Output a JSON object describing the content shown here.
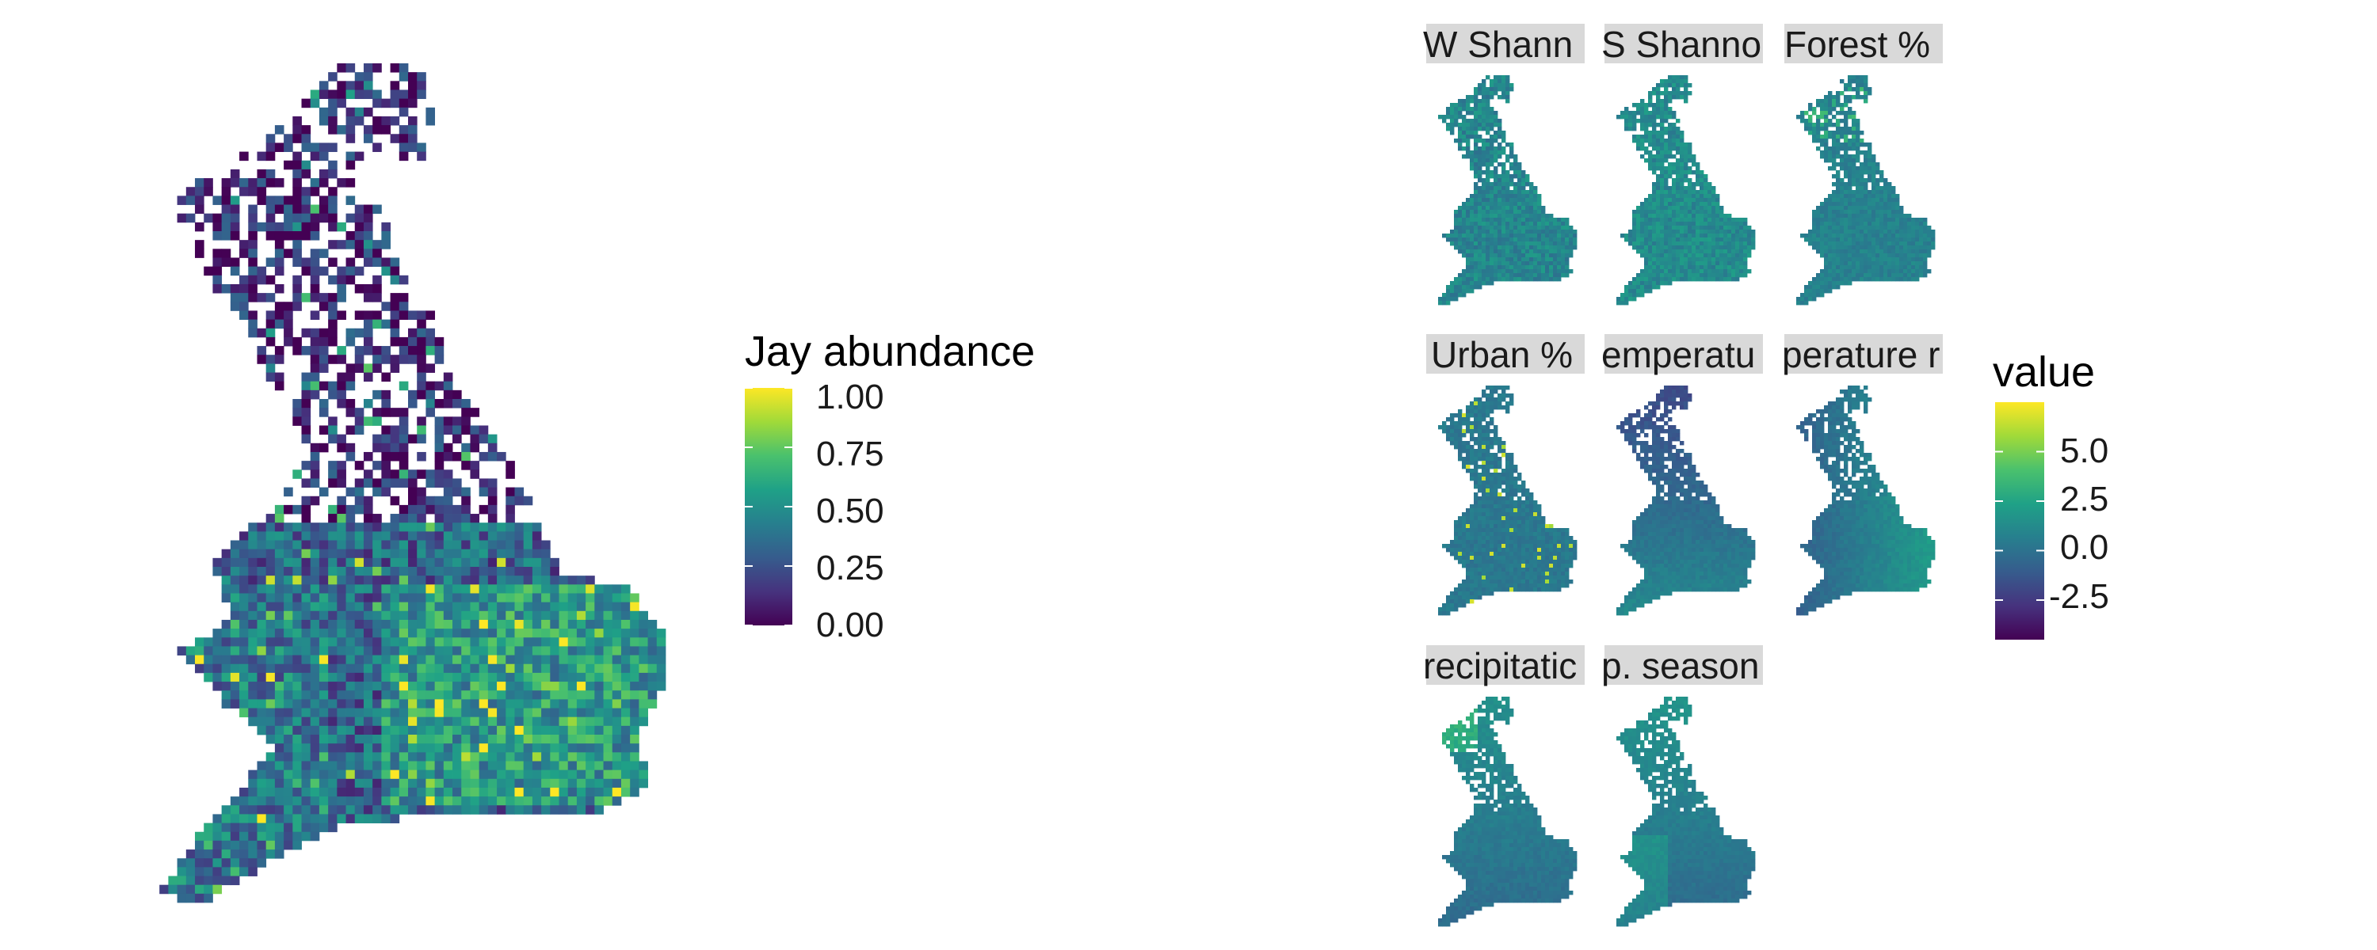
{
  "main_map": {
    "legend_title": "Jay abundance",
    "legend_ticks": [
      "1.00",
      "0.75",
      "0.50",
      "0.25",
      "0.00"
    ],
    "tick_values": [
      1.0,
      0.75,
      0.5,
      0.25,
      0.0
    ],
    "range": [
      0,
      1
    ]
  },
  "facets": {
    "panels": [
      {
        "strip": "W Shann"
      },
      {
        "strip": "S Shanno"
      },
      {
        "strip": "Forest %"
      },
      {
        "strip": "Urban %"
      },
      {
        "strip": "emperatu"
      },
      {
        "strip": "perature r"
      },
      {
        "strip": "recipitatic"
      },
      {
        "strip": "p. season"
      }
    ],
    "legend_title": "value",
    "legend_ticks": [
      "5.0",
      "2.5",
      "0.0",
      "-2.5"
    ],
    "tick_values": [
      5.0,
      2.5,
      0.0,
      -2.5
    ],
    "range": [
      -4.5,
      7.5
    ]
  },
  "colors": {
    "palette": [
      "#440154",
      "#46337e",
      "#365c8d",
      "#277f8e",
      "#1fa187",
      "#4ac16d",
      "#a0da39",
      "#fde725"
    ],
    "strip_bg": "#d9d9d9"
  }
}
